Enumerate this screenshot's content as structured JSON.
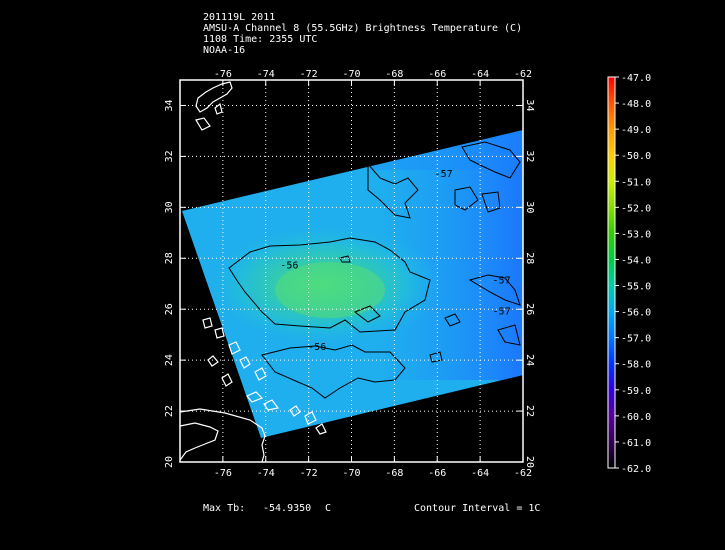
{
  "header": {
    "line1": "201119L 2011",
    "line2": "AMSU-A Channel 8 (55.5GHz) Brightness Temperature (C)",
    "line3": "1108 Time: 2355 UTC",
    "line4": "NOAA-16"
  },
  "map": {
    "lon_range": [
      -78,
      -62
    ],
    "lat_range": [
      20,
      35
    ],
    "lon_ticks": [
      "-76",
      "-74",
      "-72",
      "-70",
      "-68",
      "-66",
      "-64",
      "-62"
    ],
    "lat_ticks": [
      "20",
      "22",
      "24",
      "26",
      "28",
      "30",
      "32",
      "34"
    ],
    "grid": true,
    "contour_labels": [
      {
        "text": "-56",
        "lon": -72.9,
        "lat": 27.6
      },
      {
        "text": "-56",
        "lon": -71.6,
        "lat": 24.4
      },
      {
        "text": "-57",
        "lon": -65.7,
        "lat": 31.2
      },
      {
        "text": "-57",
        "lon": -63.0,
        "lat": 27.0
      },
      {
        "text": "-57",
        "lon": -63.0,
        "lat": 25.8
      }
    ],
    "contour_interval_units": "C"
  },
  "colorbar": {
    "labels": [
      "-47.0",
      "-48.0",
      "-49.0",
      "-50.0",
      "-51.0",
      "-52.0",
      "-53.0",
      "-54.0",
      "-55.0",
      "-56.0",
      "-57.0",
      "-58.0",
      "-59.0",
      "-60.0",
      "-61.0",
      "-62.0"
    ],
    "colors": [
      "#ff0000",
      "#ff5500",
      "#ff9900",
      "#ffcc00",
      "#ccee00",
      "#88dd00",
      "#33cc00",
      "#00cc44",
      "#00ccaa",
      "#00aaee",
      "#0077ff",
      "#0033ff",
      "#3300dd",
      "#550099",
      "#330055",
      "#000000"
    ]
  },
  "footer": {
    "max_label": "Max Tb:",
    "max_value": "-54.9350",
    "max_unit": "C",
    "contour_text": "Contour Interval = 1C"
  }
}
